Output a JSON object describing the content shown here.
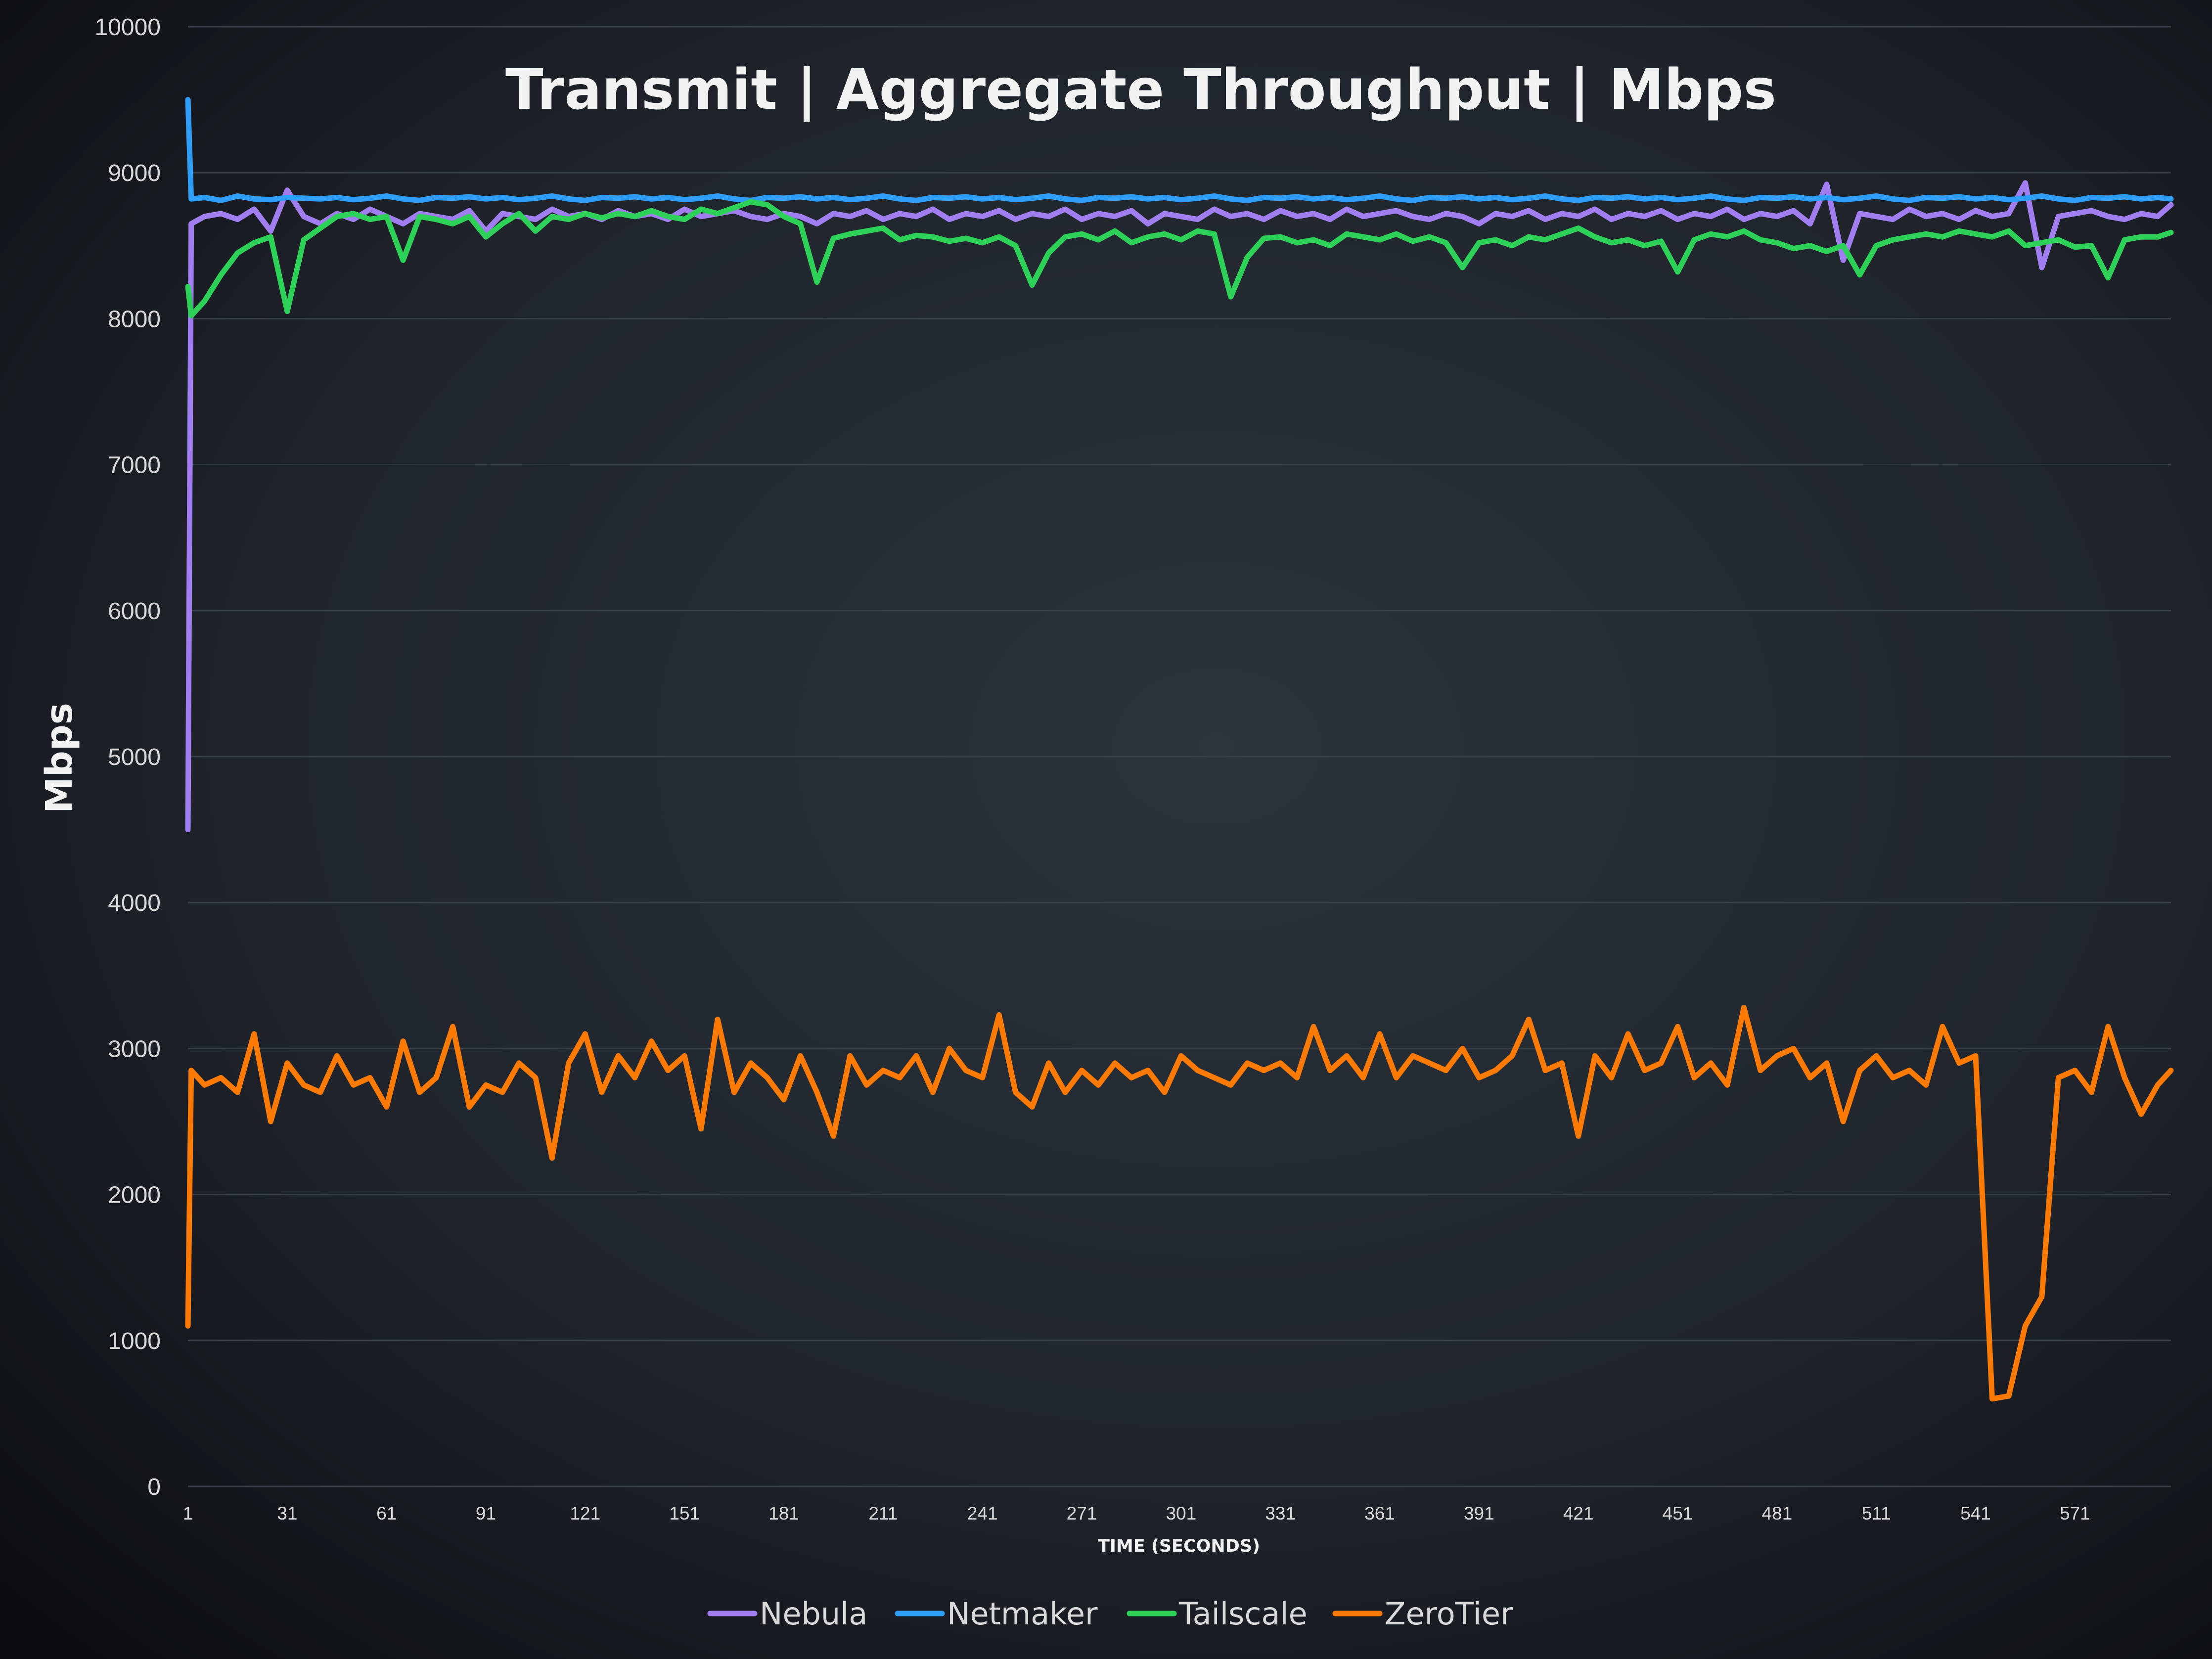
{
  "chart_data": {
    "type": "line",
    "title": "Transmit | Aggregate Throughput | Mbps",
    "xlabel": "TIME (SECONDS)",
    "ylabel": "Mbps",
    "ylim": [
      0,
      10000
    ],
    "yticks": [
      0,
      1000,
      2000,
      3000,
      4000,
      5000,
      6000,
      7000,
      8000,
      9000,
      10000
    ],
    "xlim": [
      1,
      600
    ],
    "xticks": [
      1,
      31,
      61,
      91,
      121,
      151,
      181,
      211,
      241,
      271,
      301,
      331,
      361,
      391,
      421,
      451,
      481,
      511,
      541,
      571
    ],
    "grid": "horizontal",
    "legend_position": "bottom",
    "background": "dark",
    "x": [
      1,
      2,
      6,
      11,
      16,
      21,
      26,
      31,
      36,
      41,
      46,
      51,
      56,
      61,
      66,
      71,
      76,
      81,
      86,
      91,
      96,
      101,
      106,
      111,
      116,
      121,
      126,
      131,
      136,
      141,
      146,
      151,
      156,
      161,
      166,
      171,
      176,
      181,
      186,
      191,
      196,
      201,
      206,
      211,
      216,
      221,
      226,
      231,
      236,
      241,
      246,
      251,
      256,
      261,
      266,
      271,
      276,
      281,
      286,
      291,
      296,
      301,
      306,
      311,
      316,
      321,
      326,
      331,
      336,
      341,
      346,
      351,
      356,
      361,
      366,
      371,
      376,
      381,
      386,
      391,
      396,
      401,
      406,
      411,
      416,
      421,
      426,
      431,
      436,
      441,
      446,
      451,
      456,
      461,
      466,
      471,
      476,
      481,
      486,
      491,
      496,
      501,
      506,
      511,
      516,
      521,
      526,
      531,
      536,
      541,
      546,
      551,
      556,
      561,
      566,
      571,
      576,
      581,
      586,
      591,
      596,
      600
    ],
    "series": [
      {
        "name": "Nebula",
        "color": "#a07ef0",
        "values": [
          4500,
          8650,
          8700,
          8720,
          8680,
          8750,
          8600,
          8880,
          8700,
          8650,
          8720,
          8680,
          8750,
          8700,
          8650,
          8720,
          8700,
          8680,
          8740,
          8600,
          8720,
          8700,
          8680,
          8750,
          8700,
          8720,
          8680,
          8740,
          8700,
          8720,
          8680,
          8750,
          8700,
          8720,
          8740,
          8700,
          8680,
          8720,
          8700,
          8650,
          8720,
          8700,
          8740,
          8680,
          8720,
          8700,
          8750,
          8680,
          8720,
          8700,
          8740,
          8680,
          8720,
          8700,
          8750,
          8680,
          8720,
          8700,
          8740,
          8650,
          8720,
          8700,
          8680,
          8750,
          8700,
          8720,
          8680,
          8740,
          8700,
          8720,
          8680,
          8750,
          8700,
          8720,
          8740,
          8700,
          8680,
          8720,
          8700,
          8650,
          8720,
          8700,
          8740,
          8680,
          8720,
          8700,
          8750,
          8680,
          8720,
          8700,
          8740,
          8680,
          8720,
          8700,
          8750,
          8680,
          8720,
          8700,
          8740,
          8650,
          8920,
          8400,
          8720,
          8700,
          8680,
          8750,
          8700,
          8720,
          8680,
          8740,
          8700,
          8720,
          8930,
          8350,
          8700,
          8720,
          8740,
          8700,
          8680,
          8720,
          8700,
          8780
        ]
      },
      {
        "name": "Netmaker",
        "color": "#2f9ef8",
        "values": [
          9500,
          8820,
          8830,
          8810,
          8840,
          8820,
          8815,
          8830,
          8825,
          8820,
          8830,
          8815,
          8825,
          8840,
          8820,
          8810,
          8830,
          8825,
          8835,
          8820,
          8830,
          8815,
          8825,
          8840,
          8820,
          8810,
          8830,
          8825,
          8835,
          8820,
          8830,
          8815,
          8825,
          8840,
          8820,
          8810,
          8830,
          8825,
          8835,
          8820,
          8830,
          8815,
          8825,
          8840,
          8820,
          8810,
          8830,
          8825,
          8835,
          8820,
          8830,
          8815,
          8825,
          8840,
          8820,
          8810,
          8830,
          8825,
          8835,
          8820,
          8830,
          8815,
          8825,
          8840,
          8820,
          8810,
          8830,
          8825,
          8835,
          8820,
          8830,
          8815,
          8825,
          8840,
          8820,
          8810,
          8830,
          8825,
          8835,
          8820,
          8830,
          8815,
          8825,
          8840,
          8820,
          8810,
          8830,
          8825,
          8835,
          8820,
          8830,
          8815,
          8825,
          8840,
          8820,
          8810,
          8830,
          8825,
          8835,
          8820,
          8830,
          8815,
          8825,
          8840,
          8820,
          8810,
          8830,
          8825,
          8835,
          8820,
          8830,
          8815,
          8825,
          8840,
          8820,
          8810,
          8830,
          8825,
          8835,
          8820,
          8830,
          8820
        ]
      },
      {
        "name": "Tailscale",
        "color": "#2ed158",
        "values": [
          8220,
          8020,
          8120,
          8300,
          8450,
          8520,
          8560,
          8050,
          8540,
          8620,
          8700,
          8720,
          8680,
          8700,
          8400,
          8700,
          8680,
          8650,
          8700,
          8560,
          8650,
          8720,
          8600,
          8700,
          8680,
          8720,
          8690,
          8720,
          8700,
          8740,
          8700,
          8680,
          8750,
          8720,
          8760,
          8800,
          8780,
          8700,
          8650,
          8250,
          8550,
          8580,
          8600,
          8620,
          8540,
          8570,
          8560,
          8530,
          8550,
          8520,
          8560,
          8500,
          8230,
          8450,
          8560,
          8580,
          8540,
          8600,
          8520,
          8560,
          8580,
          8540,
          8600,
          8580,
          8150,
          8420,
          8550,
          8560,
          8520,
          8540,
          8500,
          8580,
          8560,
          8540,
          8580,
          8530,
          8560,
          8520,
          8350,
          8520,
          8540,
          8500,
          8560,
          8540,
          8580,
          8620,
          8560,
          8520,
          8540,
          8500,
          8530,
          8320,
          8540,
          8580,
          8560,
          8600,
          8540,
          8520,
          8480,
          8500,
          8460,
          8500,
          8300,
          8500,
          8540,
          8560,
          8580,
          8560,
          8600,
          8580,
          8560,
          8600,
          8500,
          8520,
          8540,
          8490,
          8500,
          8280,
          8540,
          8560,
          8560,
          8590
        ]
      },
      {
        "name": "ZeroTier",
        "color": "#ff7a00",
        "values": [
          1100,
          2850,
          2750,
          2800,
          2700,
          3100,
          2500,
          2900,
          2750,
          2700,
          2950,
          2750,
          2800,
          2600,
          3050,
          2700,
          2800,
          3150,
          2600,
          2750,
          2700,
          2900,
          2800,
          2250,
          2900,
          3100,
          2700,
          2950,
          2800,
          3050,
          2850,
          2950,
          2450,
          3200,
          2700,
          2900,
          2800,
          2650,
          2950,
          2700,
          2400,
          2950,
          2750,
          2850,
          2800,
          2950,
          2700,
          3000,
          2850,
          2800,
          3230,
          2700,
          2600,
          2900,
          2700,
          2850,
          2750,
          2900,
          2800,
          2850,
          2700,
          2950,
          2850,
          2800,
          2750,
          2900,
          2850,
          2900,
          2800,
          3150,
          2850,
          2950,
          2800,
          3100,
          2800,
          2950,
          2900,
          2850,
          3000,
          2800,
          2850,
          2950,
          3200,
          2850,
          2900,
          2400,
          2950,
          2800,
          3100,
          2850,
          2900,
          3150,
          2800,
          2900,
          2750,
          3280,
          2850,
          2950,
          3000,
          2800,
          2900,
          2500,
          2850,
          2950,
          2800,
          2850,
          2750,
          3150,
          2900,
          2950,
          600,
          620,
          1100,
          1300,
          2800,
          2850,
          2700,
          3150,
          2800,
          2550,
          2750,
          2850
        ]
      }
    ]
  }
}
